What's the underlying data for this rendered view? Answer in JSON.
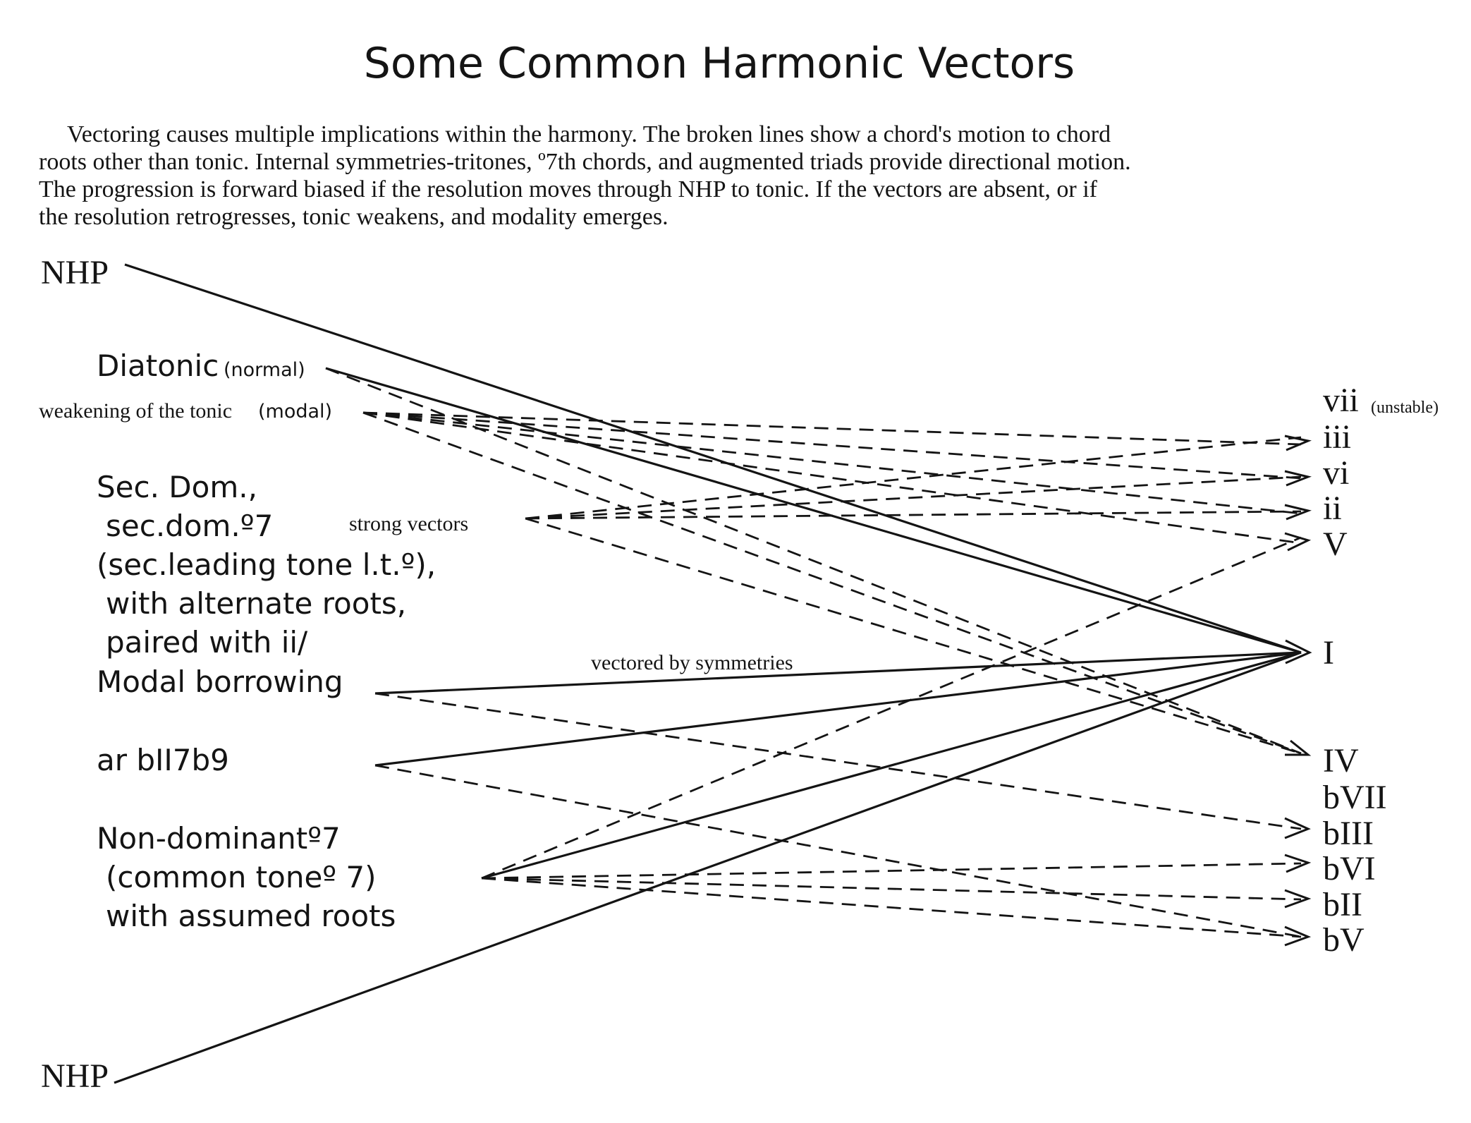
{
  "title": "Some Common Harmonic Vectors",
  "paragraph": [
    "Vectoring causes multiple implications within the harmony. The broken lines show a chord's motion to chord",
    "roots other than tonic. Internal symmetries-tritones, º7th chords, and augmented triads provide directional motion.",
    "The progression is forward biased if the resolution moves through NHP to tonic. If the vectors are absent, or if",
    "the resolution retrogresses, tonic weakens, and modality emerges."
  ],
  "left_labels": {
    "nhp_top": "NHP",
    "diatonic": "Diatonic",
    "diatonic_note": "(normal)",
    "weakening": "weakening of the tonic",
    "weakening_note": "(modal)",
    "sec_dom_lines": [
      "Sec. Dom.,",
      "sec.dom.º7",
      "(sec.leading tone l.t.º),",
      "with alternate roots,",
      "paired with ii/",
      "Modal borrowing"
    ],
    "bii": "ar bII7b9",
    "non_dom_lines": [
      "Non-dominantº7",
      "(common toneº 7)",
      "with assumed roots"
    ],
    "nhp_bottom": "NHP"
  },
  "annotations": {
    "strong_vectors": "strong vectors",
    "vectored_by_symmetries": "vectored by symmetries"
  },
  "right_labels": {
    "vii": "vii",
    "vii_note": "(unstable)",
    "iii": "iii",
    "vi": "vi",
    "ii": "ii",
    "V": "V",
    "I": "I",
    "IV": "IV",
    "bVII": "bVII",
    "bIII": "bIII",
    "bVI": "bVI",
    "bII": "bII",
    "bV": "bV"
  }
}
